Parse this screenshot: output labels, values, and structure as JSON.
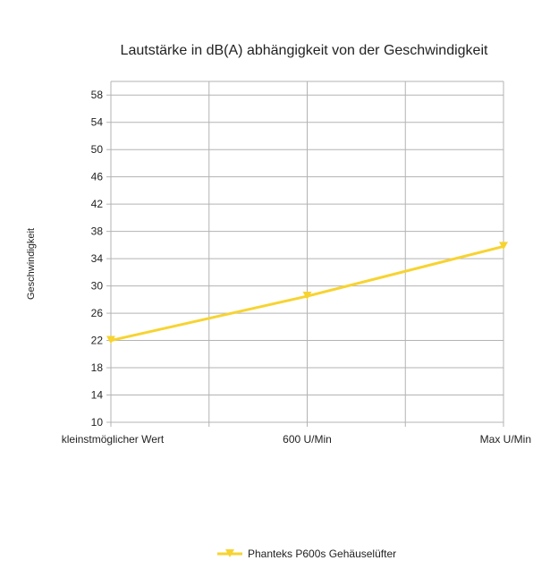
{
  "chart_data": {
    "type": "line",
    "title": "Lautstärke in dB(A) abhängigkeit von der Geschwindigkeit",
    "xlabel": "",
    "ylabel": "Geschwindigkeit",
    "categories": [
      "kleinstmöglicher Wert",
      "600 U/Min",
      "Max U/Min"
    ],
    "yticks": [
      10,
      14,
      18,
      22,
      26,
      30,
      34,
      38,
      42,
      46,
      50,
      54,
      58
    ],
    "ylim": [
      10,
      60
    ],
    "grid": true,
    "legend_position": "bottom",
    "series": [
      {
        "name": "Phanteks P600s Gehäuselüfter",
        "values": [
          22,
          28.5,
          35.8
        ],
        "color": "#f7d330"
      }
    ]
  }
}
